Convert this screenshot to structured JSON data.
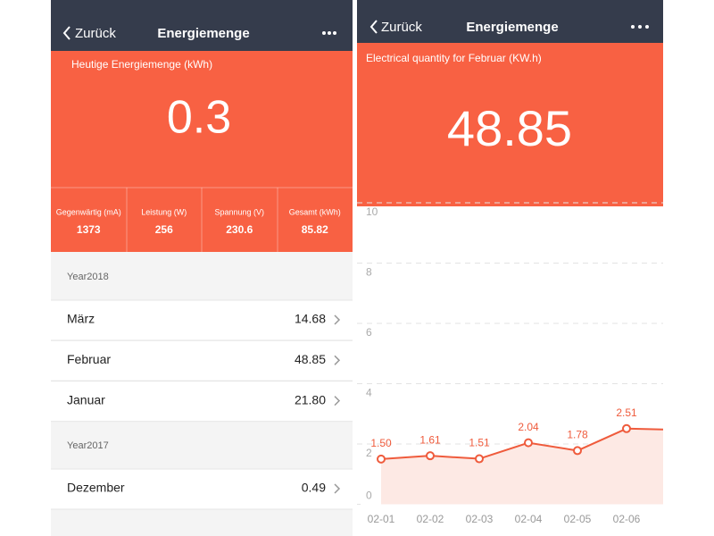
{
  "left": {
    "header": {
      "back": "Zurück",
      "title": "Energiemenge"
    },
    "today": {
      "label": "Heutige Energiemenge (kWh)",
      "value": "0.3"
    },
    "stats": [
      {
        "label": "Gegenwärtig (mA)",
        "value": "1373"
      },
      {
        "label": "Leistung (W)",
        "value": "256"
      },
      {
        "label": "Spannung (V)",
        "value": "230.6"
      },
      {
        "label": "Gesamt (kWh)",
        "value": "85.82"
      }
    ],
    "years": [
      {
        "year": "Year2018",
        "months": [
          {
            "name": "März",
            "value": "14.68"
          },
          {
            "name": "Februar",
            "value": "48.85"
          },
          {
            "name": "Januar",
            "value": "21.80"
          }
        ]
      },
      {
        "year": "Year2017",
        "months": [
          {
            "name": "Dezember",
            "value": "0.49"
          }
        ]
      }
    ]
  },
  "right": {
    "header": {
      "back": "Zurück",
      "title": "Energiemenge"
    },
    "summary": {
      "label": "Electrical quantity for Februar (KW.h)",
      "value": "48.85"
    }
  },
  "chart_data": {
    "type": "line",
    "categories": [
      "02-01",
      "02-02",
      "02-03",
      "02-04",
      "02-05",
      "02-06",
      null
    ],
    "values": [
      1.5,
      1.61,
      1.51,
      2.04,
      1.78,
      2.51,
      2.47
    ],
    "value_labels": [
      "1.50",
      "1.61",
      "1.51",
      "2.04",
      "1.78",
      "2.51",
      null
    ],
    "color": "#ef5b3c",
    "ylim": [
      0,
      10
    ],
    "yticks": [
      0,
      2,
      4,
      6,
      8,
      10
    ],
    "grid": true
  }
}
